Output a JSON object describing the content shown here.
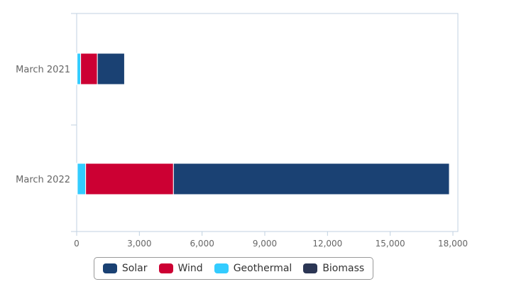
{
  "chart_data": {
    "type": "bar",
    "orientation": "horizontal",
    "stacked": true,
    "categories": [
      "March 2021",
      "March 2022"
    ],
    "series": [
      {
        "name": "Solar",
        "color": "#1a4173",
        "values": [
          1300,
          13200
        ]
      },
      {
        "name": "Wind",
        "color": "#cc0033",
        "values": [
          800,
          4200
        ]
      },
      {
        "name": "Geothermal",
        "color": "#33ccff",
        "values": [
          170,
          400
        ]
      },
      {
        "name": "Biomass",
        "color": "#2b3654",
        "values": [
          20,
          30
        ]
      }
    ],
    "xlim": [
      0,
      18000
    ],
    "xticks": [
      0,
      3000,
      6000,
      9000,
      12000,
      15000,
      18000
    ],
    "xtick_labels": [
      "0",
      "3,000",
      "6,000",
      "9,000",
      "12,000",
      "15,000",
      "18,000"
    ],
    "title": "",
    "xlabel": "",
    "ylabel": "",
    "legend_position": "bottom-center",
    "grid": false
  }
}
